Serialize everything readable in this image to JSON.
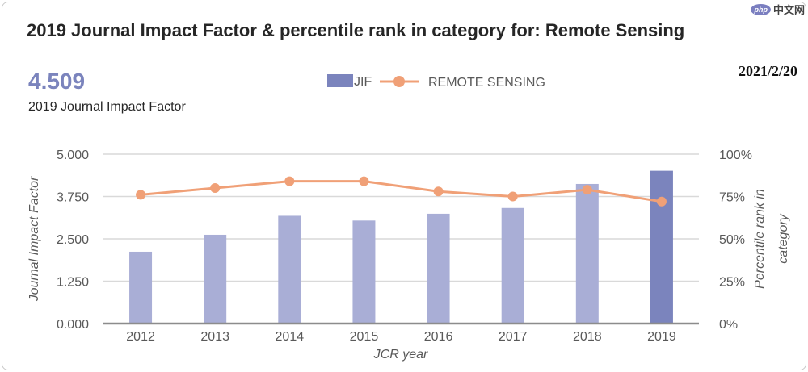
{
  "header": {
    "title": "2019 Journal Impact Factor & percentile rank in category for: Remote Sensing",
    "watermark": "中文网",
    "watermark_badge": "php"
  },
  "summary": {
    "jif_value": "4.509",
    "jif_caption": "2019 Journal Impact Factor",
    "date": "2021/2/20"
  },
  "colors": {
    "bar": "#a9aed6",
    "bar_highlight": "#7b84bd",
    "line": "#f0a077",
    "grid": "#d9d9d9",
    "axis_text": "#595959"
  },
  "chart_data": {
    "type": "bar",
    "title": "",
    "categories": [
      "2012",
      "2013",
      "2014",
      "2015",
      "2016",
      "2017",
      "2018",
      "2019"
    ],
    "series": [
      {
        "name": "JIF",
        "type": "bar",
        "axis": "left",
        "values": [
          2.12,
          2.62,
          3.18,
          3.04,
          3.24,
          3.41,
          4.12,
          4.509
        ]
      },
      {
        "name": "REMOTE SENSING",
        "type": "line",
        "axis": "right",
        "values": [
          76,
          80,
          84,
          84,
          78,
          75,
          79,
          72
        ]
      }
    ],
    "xlabel": "JCR year",
    "ylabel": "Journal Impact Factor",
    "y2label_lines": [
      "Percentile rank in",
      "category"
    ],
    "ylim": [
      0,
      5
    ],
    "y2lim": [
      0,
      100
    ],
    "yticks": [
      "0.000",
      "1.250",
      "2.500",
      "3.750",
      "5.000"
    ],
    "y2ticks": [
      "0%",
      "25%",
      "50%",
      "75%",
      "100%"
    ],
    "grid": true,
    "legend": "top-center"
  }
}
